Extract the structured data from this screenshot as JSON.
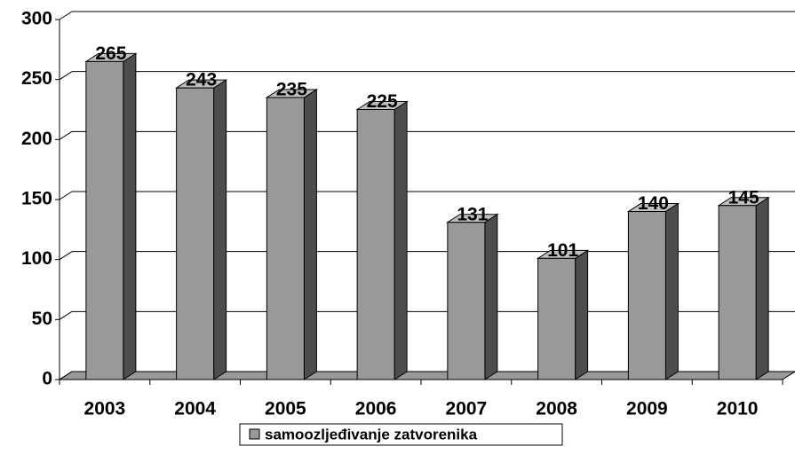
{
  "chart_data": {
    "type": "bar3d",
    "categories": [
      "2003",
      "2004",
      "2005",
      "2006",
      "2007",
      "2008",
      "2009",
      "2010"
    ],
    "series": [
      {
        "name": "samoozljeđivanje zatvorenika",
        "color": "#999999",
        "values": [
          265,
          243,
          235,
          225,
          131,
          101,
          140,
          145
        ]
      }
    ],
    "ylim": [
      0,
      300
    ],
    "yticks": [
      0,
      50,
      100,
      150,
      200,
      250,
      300
    ],
    "grid": true,
    "legend": "bottom"
  }
}
